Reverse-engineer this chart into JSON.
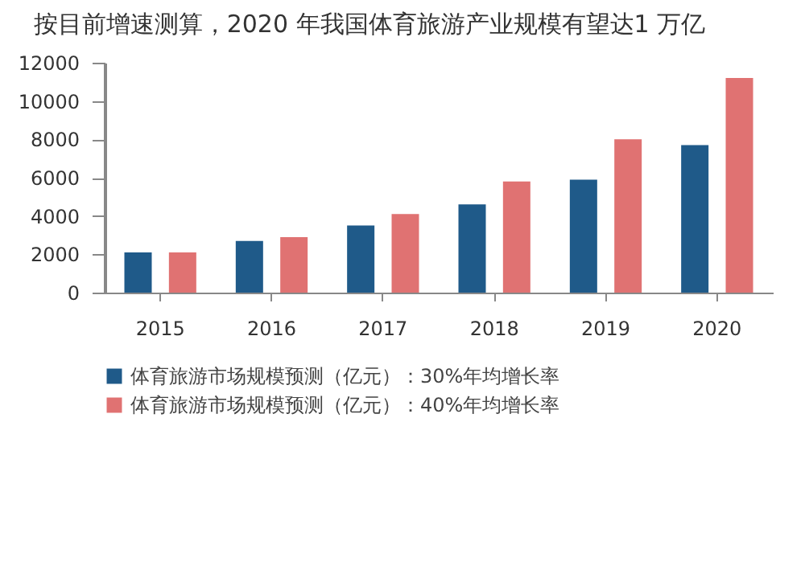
{
  "chart_data": {
    "type": "bar",
    "title": "按目前增速测算，2020 年我国体育旅游产业规模有望达1 万亿",
    "categories": [
      "2015",
      "2016",
      "2017",
      "2018",
      "2019",
      "2020"
    ],
    "series": [
      {
        "name": "体育旅游市场规模预测（亿元）：30%年均增长率",
        "color": "#1f5a89",
        "values": [
          2100,
          2700,
          3500,
          4600,
          5900,
          7700
        ]
      },
      {
        "name": "体育旅游市场规模预测（亿元）：40%年均增长率",
        "color": "#e07272",
        "values": [
          2100,
          2900,
          4100,
          5800,
          8000,
          11200
        ]
      }
    ],
    "ylim": [
      0,
      12000
    ],
    "yticks": [
      0,
      2000,
      4000,
      6000,
      8000,
      10000,
      12000
    ],
    "grid": false,
    "legend": "bottom"
  }
}
